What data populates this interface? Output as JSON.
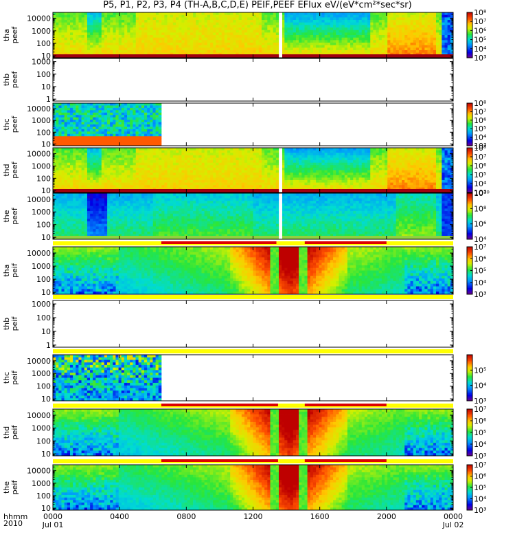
{
  "title": "P5, P1, P2, P3, P4 (TH-A,B,C,D,E) PEIF,PEEF EFlux eV/(eV*cm²*sec*sr)",
  "chart_data": {
    "type": "heatmap",
    "title": "P5, P1, P2, P3, P4 (TH-A,B,C,D,E) PEIF,PEEF EFlux eV/(eV*cm²*sec*sr)",
    "x_axis": {
      "range_hours": [
        0,
        24
      ],
      "tick_hours": [
        0,
        4,
        8,
        12,
        16,
        20,
        24
      ],
      "tick_labels": [
        "0000",
        "0400",
        "0800",
        "1200",
        "1600",
        "2000",
        "0000"
      ],
      "date_labels": [
        "Jul 01",
        "Jul 02"
      ],
      "corner_labels": [
        "hhmm",
        "2010"
      ]
    },
    "y_scale": "log",
    "panels": [
      {
        "id": "tha-peef",
        "probe": "tha",
        "product": "peef",
        "ylim": [
          7,
          30000
        ],
        "yticks": [
          10,
          100,
          1000,
          10000
        ],
        "ytick_labels": [
          "10",
          "100",
          "1000",
          "10000"
        ],
        "has_data": true,
        "data_end_hour": 24,
        "gap_hours": [
          13.55,
          13.75
        ],
        "level_shape": "ele",
        "fill_low_color": "#a00010",
        "colorbar": {
          "range": [
            1000,
            100000000
          ],
          "ticks": [
            1000,
            10000,
            100000,
            1000000,
            10000000,
            100000000
          ],
          "labels": [
            "10³",
            "10⁴",
            "10⁵",
            "10⁶",
            "10⁷",
            "10⁸"
          ]
        }
      },
      {
        "id": "thb-peef",
        "probe": "thb",
        "product": "peef",
        "ylim": [
          0.7,
          1800
        ],
        "yticks": [
          1,
          10,
          100,
          1000
        ],
        "ytick_labels": [
          "1",
          "10",
          "100",
          "1000"
        ],
        "has_data": false
      },
      {
        "id": "thc-peef",
        "probe": "thc",
        "product": "peef",
        "ylim": [
          7,
          30000
        ],
        "yticks": [
          10,
          100,
          1000,
          10000
        ],
        "ytick_labels": [
          "10",
          "100",
          "1000",
          "10000"
        ],
        "has_data": true,
        "data_end_hour": 6.5,
        "level_shape": "thc_e",
        "colorbar": {
          "range": [
            1000,
            100000000
          ],
          "ticks": [
            1000,
            10000,
            100000,
            1000000,
            10000000,
            100000000
          ],
          "labels": [
            "10³",
            "10⁴",
            "10⁵",
            "10⁶",
            "10⁷",
            "10⁸"
          ]
        }
      },
      {
        "id": "thd-peef",
        "probe": "thd",
        "product": "peef",
        "ylim": [
          7,
          30000
        ],
        "yticks": [
          10,
          100,
          1000,
          10000
        ],
        "ytick_labels": [
          "10",
          "100",
          "1000",
          "10000"
        ],
        "has_data": true,
        "data_end_hour": 24,
        "gap_hours": [
          13.55,
          13.75
        ],
        "level_shape": "ele",
        "fill_low_color": "#a00010",
        "colorbar": {
          "range": [
            1000,
            100000000
          ],
          "ticks": [
            1000,
            10000,
            100000,
            1000000,
            10000000,
            100000000
          ],
          "labels": [
            "10³",
            "10⁴",
            "10⁵",
            "10⁶",
            "10⁷",
            "10⁸"
          ]
        }
      },
      {
        "id": "the-peef",
        "probe": "the",
        "product": "peef",
        "ylim": [
          7,
          30000
        ],
        "yticks": [
          10,
          100,
          1000,
          10000
        ],
        "ytick_labels": [
          "10",
          "100",
          "1000",
          "10000"
        ],
        "has_data": true,
        "data_end_hour": 24,
        "gap_hours": [
          13.55,
          13.75
        ],
        "level_shape": "the_e",
        "fill_low_color": "#90d040",
        "colorbar": {
          "range": [
            10000,
            10000000000
          ],
          "ticks": [
            10000,
            1000000,
            100000000,
            10000000000
          ],
          "labels": [
            "10⁴",
            "10⁶",
            "10⁸",
            "10¹⁰"
          ]
        }
      },
      {
        "id": "tha-peif",
        "probe": "tha",
        "product": "peif",
        "ylim": [
          7,
          30000
        ],
        "yticks": [
          10,
          100,
          1000,
          10000
        ],
        "ytick_labels": [
          "10",
          "100",
          "1000",
          "10000"
        ],
        "has_data": true,
        "data_end_hour": 24,
        "level_shape": "ion",
        "mode_bar": {
          "yellow_hours": [
            0,
            24
          ],
          "red_hours": [
            [
              6.5,
              13.4
            ],
            [
              15.1,
              20
            ]
          ]
        },
        "colorbar": {
          "range": [
            1000,
            10000000
          ],
          "ticks": [
            1000,
            10000,
            100000,
            1000000,
            10000000
          ],
          "labels": [
            "10³",
            "10⁴",
            "10⁵",
            "10⁶",
            "10⁷"
          ]
        }
      },
      {
        "id": "thb-peif",
        "probe": "thb",
        "product": "peif",
        "ylim": [
          0.7,
          1800
        ],
        "yticks": [
          1,
          10,
          100,
          1000
        ],
        "ytick_labels": [
          "1",
          "10",
          "100",
          "1000"
        ],
        "has_data": false,
        "mode_bar": {
          "yellow_hours": [
            0,
            24
          ],
          "red_hours": []
        }
      },
      {
        "id": "thc-peif",
        "probe": "thc",
        "product": "peif",
        "ylim": [
          7,
          30000
        ],
        "yticks": [
          10,
          100,
          1000,
          10000
        ],
        "ytick_labels": [
          "10",
          "100",
          "1000",
          "10000"
        ],
        "has_data": true,
        "data_end_hour": 6.5,
        "level_shape": "thc_i",
        "mode_bar": {
          "yellow_hours": [
            0,
            24
          ],
          "red_hours": []
        },
        "colorbar": {
          "range": [
            1000,
            1000000
          ],
          "ticks": [
            1000,
            10000,
            100000
          ],
          "labels": [
            "10³",
            "10⁴",
            "10⁵"
          ]
        }
      },
      {
        "id": "thd-peif",
        "probe": "thd",
        "product": "peif",
        "ylim": [
          7,
          30000
        ],
        "yticks": [
          10,
          100,
          1000,
          10000
        ],
        "ytick_labels": [
          "10",
          "100",
          "1000",
          "10000"
        ],
        "has_data": true,
        "data_end_hour": 24,
        "level_shape": "ion",
        "mode_bar": {
          "yellow_hours": [
            0,
            24
          ],
          "red_hours": [
            [
              6.5,
              13.5
            ],
            [
              15.1,
              20
            ]
          ]
        },
        "colorbar": {
          "range": [
            1000,
            10000000
          ],
          "ticks": [
            1000,
            10000,
            100000,
            1000000,
            10000000
          ],
          "labels": [
            "10³",
            "10⁴",
            "10⁵",
            "10⁶",
            "10⁷"
          ]
        }
      },
      {
        "id": "the-peif",
        "probe": "the",
        "product": "peif",
        "ylim": [
          7,
          30000
        ],
        "yticks": [
          10,
          100,
          1000,
          10000
        ],
        "ytick_labels": [
          "10",
          "100",
          "1000",
          "10000"
        ],
        "has_data": true,
        "data_end_hour": 24,
        "level_shape": "ion",
        "mode_bar": {
          "yellow_hours": [
            0,
            24
          ],
          "red_hours": [
            [
              6.5,
              13.5
            ],
            [
              15.1,
              20
            ]
          ]
        },
        "colorbar": {
          "range": [
            1000,
            10000000
          ],
          "ticks": [
            1000,
            10000,
            100000,
            1000000,
            10000000
          ],
          "labels": [
            "10³",
            "10⁴",
            "10⁵",
            "10⁶",
            "10⁷"
          ]
        }
      }
    ]
  }
}
